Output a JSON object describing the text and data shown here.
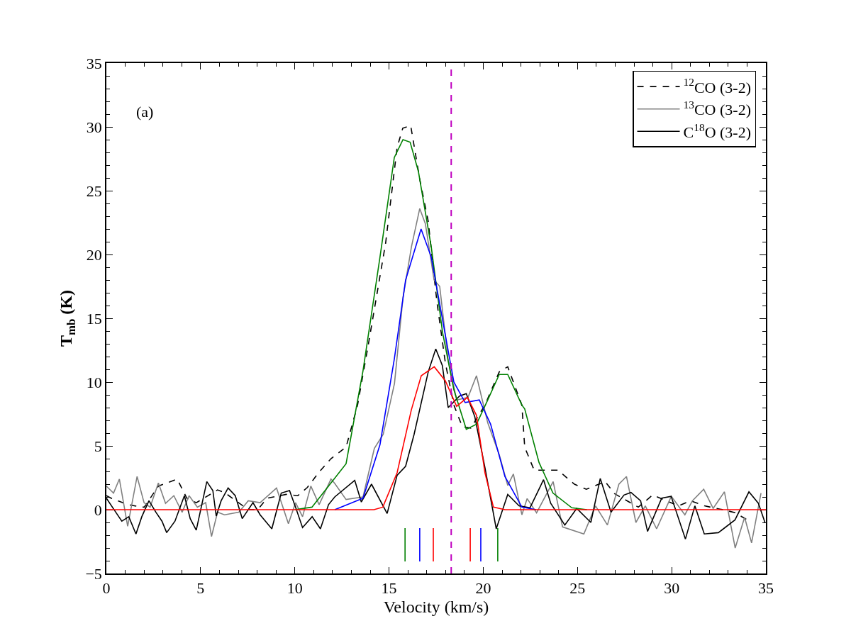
{
  "chart_data": {
    "type": "line",
    "xlabel": "Velocity (km/s)",
    "ylabel": "T$_{mb}$ (K)",
    "xlim": [
      0,
      35
    ],
    "xticks": [
      0,
      5,
      10,
      15,
      20,
      25,
      30,
      35
    ],
    "ylim": [
      -5,
      35
    ],
    "yticks": [
      -5,
      0,
      5,
      10,
      15,
      20,
      25,
      30,
      35
    ],
    "grid": false,
    "legend": "top right",
    "marker": "none",
    "annotations": [
      "(a)"
    ],
    "ref_lines": [
      {
        "axis": "x",
        "value": 18.3,
        "color": "#bf00bf",
        "line_style": "dashed"
      }
    ],
    "series": [
      {
        "name": "$^{12}$CO (3-2)",
        "color": "#000000",
        "line_style": "dashed",
        "x": [
          0,
          0.25,
          1.13,
          1.88,
          2.01,
          2.76,
          3.76,
          4.27,
          4.77,
          5.9,
          6.27,
          7.53,
          8.03,
          8.53,
          9.54,
          10.16,
          10.67,
          11.29,
          11.92,
          12.72,
          13.33,
          13.92,
          14.82,
          15.43,
          15.73,
          16.15,
          16.63,
          17.08,
          17.54,
          17.99,
          18.44,
          18.89,
          19.34,
          20.09,
          20.85,
          21.3,
          22.05,
          22.2,
          22.7,
          23.96,
          24.84,
          25.47,
          26.47,
          26.97,
          28.23,
          28.99,
          30.36,
          30.99,
          31.74,
          32.87,
          33.37,
          34.24
        ],
        "values": [
          1.1,
          0.9,
          0.4,
          0.2,
          0.2,
          1.85,
          2.4,
          0.9,
          0.55,
          1.55,
          1.35,
          0.0,
          0.0,
          0.9,
          1.2,
          1.1,
          1.75,
          2.95,
          4.0,
          4.9,
          8.2,
          13.1,
          20.9,
          28.4,
          29.9,
          30.1,
          25.9,
          22.6,
          16.3,
          11.5,
          8.2,
          6.5,
          6.4,
          8.2,
          10.8,
          11.2,
          8.2,
          4.9,
          3.1,
          3.1,
          2.0,
          1.6,
          2.2,
          1.25,
          0.2,
          1.15,
          0.3,
          0.7,
          0.3,
          -0.05,
          -0.24,
          -1.0
        ]
      },
      {
        "name": "$^{13}$CO (3-2)",
        "color": "#808080",
        "x": [
          0,
          0.38,
          0.69,
          1.13,
          1.63,
          2.0,
          2.32,
          2.76,
          3.14,
          3.58,
          4.02,
          4.39,
          4.83,
          5.27,
          5.58,
          5.9,
          6.27,
          7.03,
          7.53,
          8.16,
          9.03,
          9.66,
          10.04,
          10.41,
          10.85,
          11.29,
          11.92,
          12.12,
          12.72,
          13.62,
          14.22,
          14.69,
          15.29,
          15.74,
          16.19,
          16.63,
          16.93,
          17.39,
          17.69,
          18.14,
          18.59,
          19.19,
          19.64,
          20.24,
          20.85,
          21.3,
          21.6,
          22.05,
          22.33,
          22.83,
          23.71,
          24.21,
          25.34,
          25.96,
          26.59,
          27.2,
          27.6,
          28.1,
          28.6,
          29.2,
          29.98,
          30.7,
          31.1,
          31.7,
          32.2,
          32.8,
          33.37,
          33.87,
          34.24,
          34.74
        ],
        "values": [
          1.85,
          1.3,
          2.4,
          -1.3,
          2.6,
          0.55,
          0.2,
          2.1,
          0.5,
          1.1,
          -0.2,
          1.1,
          0.2,
          0.55,
          -2.1,
          -0.2,
          -0.4,
          -0.2,
          0.7,
          0.55,
          1.7,
          -1.1,
          0.55,
          -0.55,
          1.85,
          0.4,
          2.4,
          2.05,
          0.8,
          1.0,
          4.8,
          5.9,
          9.9,
          16.6,
          20.6,
          23.6,
          22.4,
          18.0,
          17.5,
          11.7,
          8.6,
          8.8,
          10.5,
          6.8,
          4.3,
          1.9,
          2.8,
          -0.4,
          0.87,
          -0.24,
          2.2,
          -1.35,
          -1.9,
          0.3,
          -1.2,
          2.0,
          2.6,
          -1.0,
          0.3,
          -1.5,
          1.05,
          -0.4,
          0.7,
          1.6,
          0.1,
          1.4,
          -3.0,
          -0.6,
          -2.6,
          1.3
        ]
      },
      {
        "name": "C$^{18}$O (3-2)",
        "color": "#000000",
        "x": [
          0,
          0.5,
          0.82,
          1.19,
          1.57,
          1.88,
          2.26,
          2.63,
          2.95,
          3.2,
          3.64,
          4.14,
          4.45,
          4.77,
          5.33,
          5.65,
          5.83,
          6.09,
          6.46,
          6.84,
          7.21,
          7.78,
          8.16,
          8.78,
          9.28,
          9.72,
          10.04,
          10.41,
          10.92,
          11.36,
          11.79,
          12.12,
          13.18,
          13.53,
          14.07,
          14.9,
          15.43,
          15.88,
          16.33,
          17.08,
          17.48,
          17.83,
          18.14,
          18.74,
          19.1,
          19.55,
          20.09,
          20.69,
          21.3,
          21.9,
          22.48,
          23.2,
          23.58,
          24.33,
          24.96,
          25.71,
          26.21,
          26.78,
          27.47,
          27.84,
          28.35,
          28.72,
          29.47,
          29.97,
          30.73,
          31.23,
          31.73,
          32.48,
          33.36,
          34.1,
          34.6,
          34.95
        ],
        "values": [
          0.9,
          -0.2,
          -0.9,
          -0.55,
          -1.9,
          -0.55,
          0.7,
          -0.2,
          -0.9,
          -1.8,
          -0.9,
          1.1,
          -0.7,
          -1.6,
          2.2,
          1.5,
          -0.5,
          0.7,
          1.7,
          1.1,
          -0.7,
          0.55,
          -0.4,
          -1.5,
          1.3,
          1.5,
          0.2,
          -1.4,
          -0.55,
          -1.5,
          0.4,
          1.0,
          2.3,
          0.6,
          2.0,
          -0.3,
          2.7,
          3.4,
          5.9,
          10.8,
          12.6,
          11.3,
          8.0,
          8.9,
          9.1,
          7.3,
          3.3,
          -1.5,
          1.2,
          0.3,
          0.15,
          2.35,
          0.5,
          -1.2,
          0.1,
          -1.0,
          2.45,
          -0.2,
          1.15,
          1.35,
          0.7,
          -1.7,
          0.9,
          1.05,
          -2.3,
          0.3,
          -1.9,
          -1.8,
          -0.8,
          1.4,
          0.5,
          -1.0
        ]
      },
      {
        "color": "#008000",
        "x": [
          10.0,
          10.91,
          12.72,
          13.62,
          14.52,
          15.28,
          15.74,
          16.12,
          16.56,
          17.24,
          17.84,
          18.44,
          19.1,
          19.64,
          20.24,
          20.85,
          21.3,
          22.05,
          22.2,
          22.96,
          23.7,
          24.7,
          25.5
        ],
        "values": [
          0,
          0.2,
          3.6,
          10.9,
          19.8,
          27.6,
          29.0,
          28.8,
          26.5,
          20.6,
          13.9,
          9.4,
          6.3,
          6.7,
          8.6,
          10.6,
          10.6,
          8.2,
          7.9,
          3.7,
          1.3,
          0.15,
          0
        ]
      },
      {
        "color": "#0000ff",
        "x": [
          12.12,
          13.62,
          14.52,
          15.28,
          15.88,
          16.7,
          17.24,
          17.84,
          18.44,
          19.04,
          19.79,
          20.39,
          21.15,
          22.05,
          22.8
        ],
        "values": [
          0,
          0.9,
          5.1,
          11.8,
          18.0,
          22.0,
          19.8,
          14.9,
          10.0,
          8.4,
          8.6,
          6.7,
          2.6,
          0.2,
          0
        ]
      },
      {
        "color": "#ff0000",
        "x": [
          0,
          14.2,
          14.67,
          15.43,
          16.18,
          16.71,
          17.4,
          17.99,
          18.59,
          19.16,
          19.64,
          20.09,
          20.54,
          21.15,
          35
        ],
        "values": [
          0,
          0,
          0.2,
          2.9,
          7.8,
          10.5,
          11.2,
          10.1,
          8.1,
          8.8,
          7.4,
          2.9,
          0.2,
          0,
          0
        ]
      },
      {
        "color": "#008000",
        "x": [
          15.85,
          15.85
        ],
        "values": [
          -1.45,
          -4.05
        ]
      },
      {
        "color": "#008000",
        "x": [
          20.77,
          20.77
        ],
        "values": [
          -1.45,
          -4.05
        ]
      },
      {
        "color": "#0000ff",
        "x": [
          16.63,
          16.63
        ],
        "values": [
          -1.45,
          -4.05
        ]
      },
      {
        "color": "#0000ff",
        "x": [
          19.87,
          19.87
        ],
        "values": [
          -1.45,
          -4.05
        ]
      },
      {
        "color": "#ff0000",
        "x": [
          17.35,
          17.35
        ],
        "values": [
          -1.45,
          -4.05
        ]
      },
      {
        "color": "#ff0000",
        "x": [
          19.31,
          19.31
        ],
        "values": [
          -1.45,
          -4.05
        ]
      }
    ]
  }
}
